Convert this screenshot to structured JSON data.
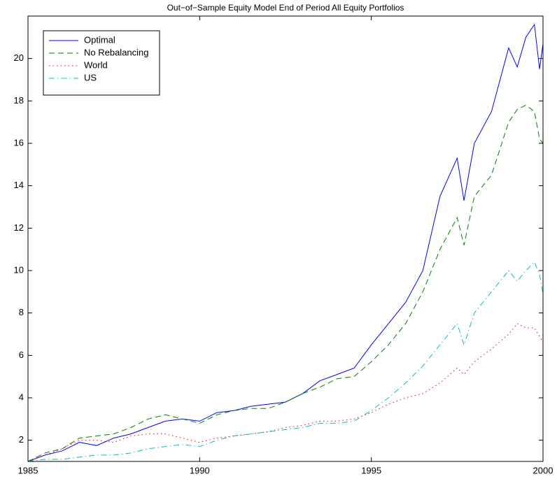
{
  "chart_data": {
    "type": "line",
    "title": "Out−of−Sample Equity Model End of Period All Equity Portfolios",
    "x": [
      1985,
      1985.5,
      1986,
      1986.5,
      1987,
      1987.5,
      1988,
      1988.5,
      1989,
      1989.5,
      1990,
      1990.5,
      1991,
      1991.5,
      1992,
      1992.5,
      1993,
      1993.5,
      1994,
      1994.5,
      1995,
      1995.5,
      1996,
      1996.5,
      1997,
      1997.5,
      1997.7,
      1998,
      1998.5,
      1999,
      1999.25,
      1999.5,
      1999.75,
      1999.9,
      2000
    ],
    "series": [
      {
        "name": "Optimal",
        "color": "#0000ff",
        "style": "solid",
        "values": [
          1.0,
          1.3,
          1.5,
          1.9,
          1.75,
          2.1,
          2.3,
          2.6,
          2.9,
          3.0,
          2.9,
          3.3,
          3.4,
          3.6,
          3.7,
          3.8,
          4.2,
          4.8,
          5.1,
          5.4,
          6.5,
          7.5,
          8.5,
          10.0,
          13.5,
          15.3,
          13.3,
          16.0,
          17.5,
          20.5,
          19.6,
          21.0,
          21.6,
          19.5,
          20.7
        ]
      },
      {
        "name": "No Rebalancing",
        "color": "#008000",
        "style": "dashed",
        "values": [
          1.0,
          1.4,
          1.6,
          2.1,
          2.2,
          2.3,
          2.6,
          3.0,
          3.2,
          3.0,
          2.8,
          3.2,
          3.4,
          3.5,
          3.5,
          3.8,
          4.2,
          4.5,
          4.9,
          5.0,
          5.7,
          6.5,
          7.5,
          9.0,
          11.0,
          12.5,
          11.2,
          13.5,
          14.5,
          17.0,
          17.6,
          17.8,
          17.5,
          16.2,
          16.0
        ]
      },
      {
        "name": "World",
        "color": "#ff0000",
        "style": "dotted",
        "values": [
          1.0,
          1.3,
          1.6,
          2.0,
          2.0,
          1.9,
          2.2,
          2.3,
          2.3,
          2.1,
          1.9,
          2.1,
          2.2,
          2.3,
          2.4,
          2.6,
          2.7,
          2.9,
          2.9,
          3.0,
          3.3,
          3.7,
          4.0,
          4.2,
          4.7,
          5.4,
          5.1,
          5.7,
          6.3,
          7.0,
          7.5,
          7.3,
          7.3,
          6.9,
          6.6
        ]
      },
      {
        "name": "US",
        "color": "#00bfbf",
        "style": "dashdot",
        "values": [
          1.0,
          1.1,
          1.1,
          1.2,
          1.3,
          1.3,
          1.4,
          1.6,
          1.7,
          1.8,
          1.7,
          2.0,
          2.2,
          2.3,
          2.4,
          2.5,
          2.6,
          2.8,
          2.8,
          2.9,
          3.4,
          4.0,
          4.7,
          5.5,
          6.5,
          7.5,
          6.5,
          8.0,
          9.0,
          10.0,
          9.5,
          10.0,
          10.4,
          9.8,
          8.9
        ]
      }
    ],
    "xlim": [
      1985,
      2000
    ],
    "xticks": [
      1985,
      1990,
      1995,
      2000
    ],
    "ylim": [
      1,
      22
    ],
    "yticks": [
      2,
      4,
      6,
      8,
      10,
      12,
      14,
      16,
      18,
      20
    ],
    "legend": "top-left"
  }
}
